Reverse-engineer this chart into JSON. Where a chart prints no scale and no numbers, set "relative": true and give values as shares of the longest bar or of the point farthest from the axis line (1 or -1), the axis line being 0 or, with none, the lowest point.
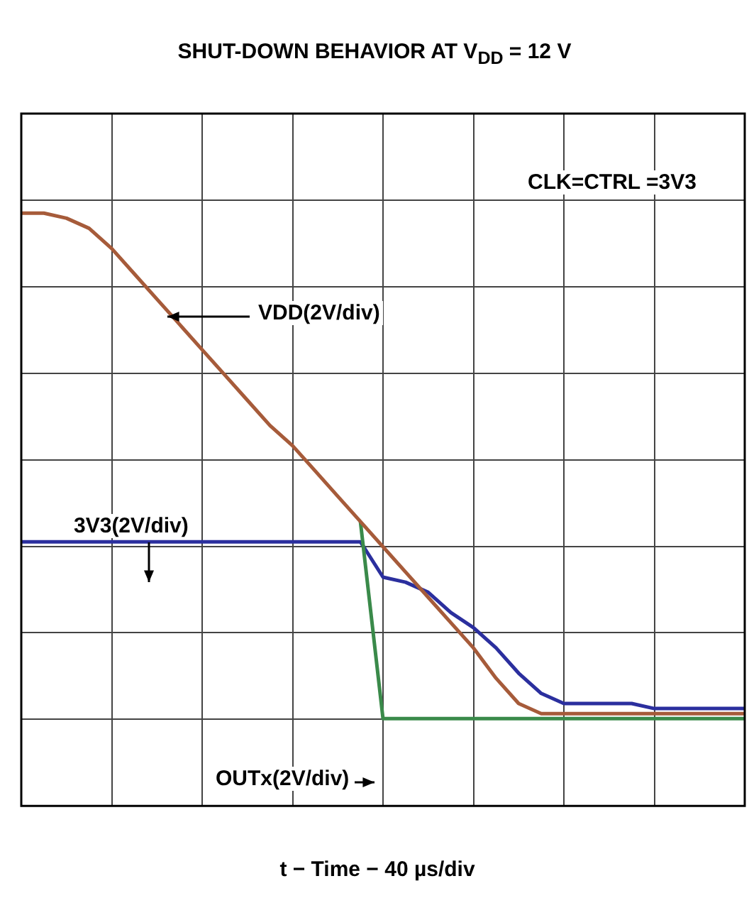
{
  "chart_data": {
    "type": "line",
    "title": "SHUT-DOWN BEHAVIOR AT V$_{DD}$ = 12 V",
    "annotations": [
      "CLK=CTRL   =3V3",
      "t − Time − 40 µs/div"
    ],
    "relative": true,
    "grid": true,
    "legend": false,
    "marker": "none",
    "categories": [
      null,
      null,
      null,
      null,
      null,
      null,
      null,
      null,
      null,
      null,
      null,
      null,
      null,
      null,
      null,
      null,
      null,
      null,
      null,
      null,
      null,
      null,
      null,
      null,
      null,
      null,
      null,
      null,
      null,
      null,
      null,
      null,
      null
    ],
    "series": [
      {
        "name": "3V3(2V/div)",
        "color": "#2b2f9e",
        "values": [
          0.35,
          0.35,
          0.35,
          0.35,
          0.35,
          0.35,
          0.35,
          0.35,
          0.35,
          0.35,
          0.35,
          0.35,
          0.35,
          0.35,
          0.35,
          0.35,
          0.28,
          0.27,
          0.25,
          0.21,
          0.18,
          0.14,
          0.09,
          0.05,
          0.03,
          0.03,
          0.03,
          0.03,
          0.02,
          0.02,
          0.02,
          0.02,
          0.02
        ]
      },
      {
        "name": "OUTx(2V/div)",
        "color": "#3a8a4a",
        "values": [
          null,
          null,
          null,
          null,
          null,
          null,
          null,
          null,
          null,
          null,
          null,
          null,
          null,
          null,
          null,
          0.39,
          0,
          0,
          0,
          0,
          0,
          0,
          0,
          0,
          0,
          0,
          0,
          0,
          0,
          0,
          0,
          0,
          0
        ]
      },
      {
        "name": "VDD(2V/div)",
        "color": "#a65b3a",
        "values": [
          1.0,
          1.0,
          0.99,
          0.97,
          0.93,
          0.88,
          0.83,
          0.78,
          0.73,
          0.68,
          0.63,
          0.58,
          0.54,
          0.49,
          0.44,
          0.39,
          0.34,
          0.29,
          0.24,
          0.19,
          0.14,
          0.08,
          0.03,
          0.01,
          0.01,
          0.01,
          0.01,
          0.01,
          0.01,
          0.01,
          0.01,
          0.01,
          0.01
        ]
      }
    ]
  }
}
